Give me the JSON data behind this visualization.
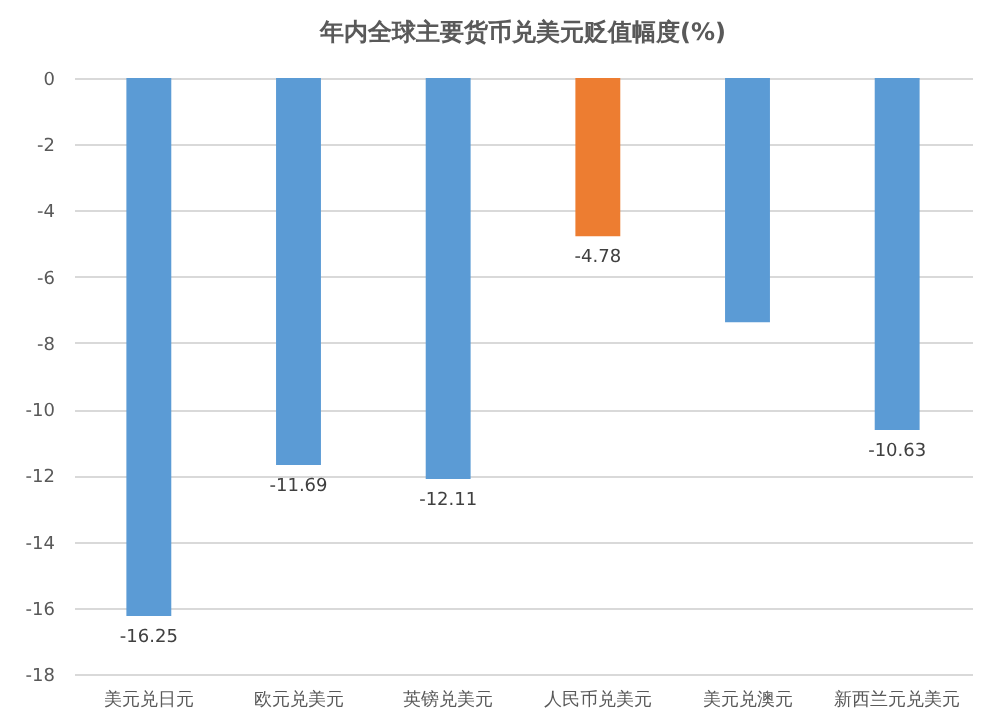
{
  "chart_data": {
    "type": "bar",
    "title": "年内全球主要货币兑美元贬值幅度(%)",
    "categories": [
      "美元兑日元",
      "欧元兑美元",
      "英镑兑美元",
      "人民币兑美元",
      "美元兑澳元",
      "新西兰元兑美元"
    ],
    "values": [
      -16.25,
      -11.69,
      -12.11,
      -4.78,
      -7.38,
      -10.63
    ],
    "colors": [
      "#5b9bd5",
      "#5b9bd5",
      "#5b9bd5",
      "#ed7d31",
      "#5b9bd5",
      "#5b9bd5"
    ],
    "value_labels": [
      "-16.25",
      "-11.69",
      "-12.11",
      "-4.78",
      null,
      "-10.63"
    ],
    "ylim": [
      -18,
      0
    ],
    "yticks": [
      0,
      -2,
      -4,
      -6,
      -8,
      -10,
      -12,
      -14,
      -16,
      -18
    ],
    "grid": "y"
  }
}
